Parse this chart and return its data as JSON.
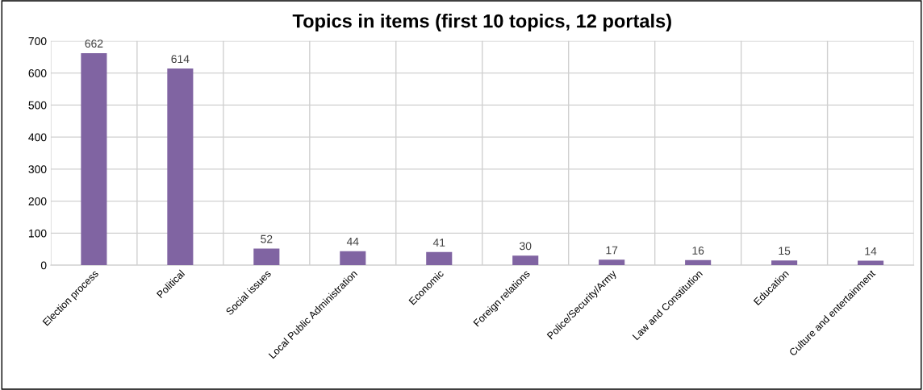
{
  "chart_data": {
    "type": "bar",
    "title": "Topics in items (first 10 topics, 12 portals)",
    "categories": [
      "Election process",
      "Political",
      "Social issues",
      "Local Public Administration",
      "Economic",
      "Foreign relations",
      "Police/Security/Army",
      "Law and Constitution",
      "Education",
      "Culture and entertainment"
    ],
    "values": [
      662,
      614,
      52,
      44,
      41,
      30,
      17,
      16,
      15,
      14
    ],
    "color": "#8064a2",
    "ylim": [
      0,
      700
    ],
    "yticks": [
      0,
      100,
      200,
      300,
      400,
      500,
      600,
      700
    ],
    "grid": true,
    "data_labels": true,
    "legend": false
  }
}
